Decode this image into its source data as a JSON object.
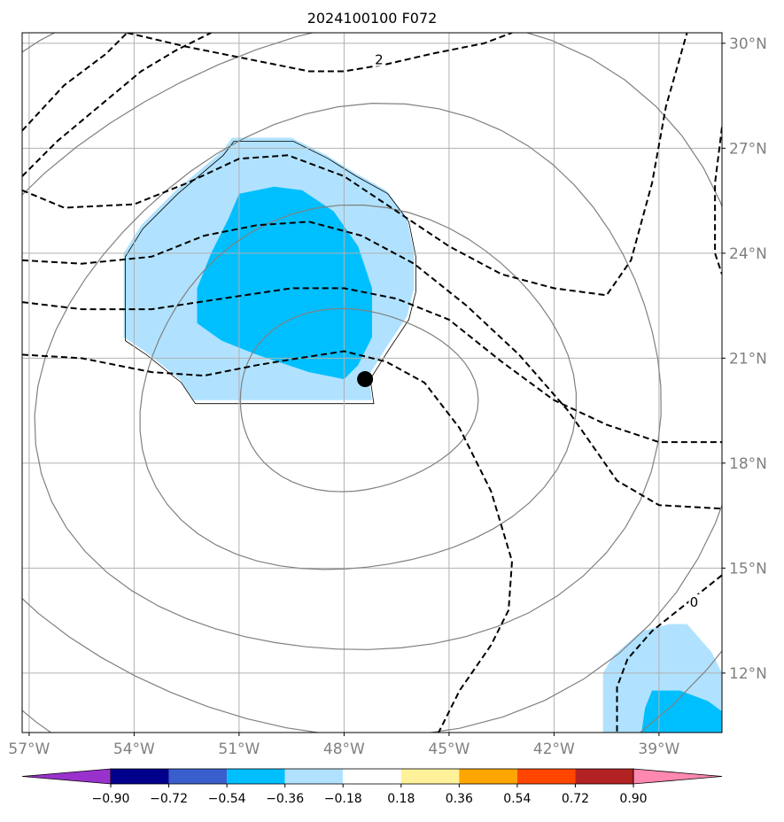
{
  "chart_data": {
    "type": "contour-map",
    "title": "2024100100 F072",
    "projection": "lat-lon",
    "xlim": [
      -57.2,
      -37.2
    ],
    "ylim": [
      10.3,
      30.3
    ],
    "lon_ticks": [
      -57,
      -54,
      -51,
      -48,
      -45,
      -42,
      -39
    ],
    "lon_tick_labels": [
      "57°W",
      "54°W",
      "51°W",
      "48°W",
      "45°W",
      "42°W",
      "39°W"
    ],
    "lat_ticks": [
      12,
      15,
      18,
      21,
      24,
      27,
      30
    ],
    "lat_tick_labels": [
      "12°N",
      "15°N",
      "18°N",
      "21°N",
      "24°N",
      "27°N",
      "30°N"
    ],
    "grid": true,
    "colorbar": {
      "orientation": "horizontal",
      "extend": "both",
      "levels": [
        -0.9,
        -0.72,
        -0.54,
        -0.36,
        -0.18,
        0.18,
        0.36,
        0.54,
        0.72,
        0.9
      ],
      "tick_labels": [
        "−0.90",
        "−0.72",
        "−0.54",
        "−0.36",
        "−0.18",
        "0.18",
        "0.36",
        "0.54",
        "0.72",
        "0.90"
      ],
      "colors": [
        "#9932cc",
        "#00008b",
        "#3a5fcd",
        "#00bfff",
        "#b0e2ff",
        "#ffffff",
        "#fff09a",
        "#ffa500",
        "#ff4500",
        "#b22222",
        "#ff88b0"
      ]
    },
    "center_marker": {
      "lon": -47.4,
      "lat": 20.4,
      "color": "#000000"
    },
    "dashed_contour_labels": [
      {
        "text": "2",
        "lon": -47.0,
        "lat": 29.5
      },
      {
        "text": "0",
        "lon": -38.0,
        "lat": 14.0
      }
    ],
    "shaded_regions": [
      {
        "level": "-0.36 to -0.18",
        "color": "#b0e2ff",
        "polygon": [
          [
            -51.2,
            27.3
          ],
          [
            -49.5,
            27.3
          ],
          [
            -48.5,
            26.8
          ],
          [
            -47.7,
            26.3
          ],
          [
            -46.8,
            25.8
          ],
          [
            -46.2,
            25.0
          ],
          [
            -46.0,
            24.0
          ],
          [
            -46.0,
            23.0
          ],
          [
            -46.2,
            22.2
          ],
          [
            -46.8,
            21.3
          ],
          [
            -47.3,
            20.5
          ],
          [
            -47.2,
            19.8
          ],
          [
            -48.5,
            19.8
          ],
          [
            -50.0,
            19.8
          ],
          [
            -51.5,
            19.8
          ],
          [
            -52.3,
            19.8
          ],
          [
            -52.7,
            20.4
          ],
          [
            -53.7,
            21.2
          ],
          [
            -54.3,
            21.6
          ],
          [
            -54.3,
            23.0
          ],
          [
            -54.3,
            24.0
          ],
          [
            -53.8,
            24.8
          ],
          [
            -52.8,
            25.8
          ],
          [
            -51.5,
            26.9
          ],
          [
            -51.2,
            27.3
          ]
        ]
      },
      {
        "level": "-0.54 to -0.36",
        "color": "#00bfff",
        "polygon": [
          [
            -51.0,
            25.7
          ],
          [
            -50.0,
            25.9
          ],
          [
            -49.2,
            25.8
          ],
          [
            -48.3,
            25.2
          ],
          [
            -47.6,
            24.2
          ],
          [
            -47.2,
            23.0
          ],
          [
            -47.2,
            21.6
          ],
          [
            -47.6,
            20.8
          ],
          [
            -48.0,
            20.4
          ],
          [
            -49.0,
            20.6
          ],
          [
            -50.5,
            21.1
          ],
          [
            -51.5,
            21.5
          ],
          [
            -52.2,
            22.0
          ],
          [
            -52.2,
            23.0
          ],
          [
            -51.8,
            24.0
          ],
          [
            -51.3,
            25.0
          ],
          [
            -51.0,
            25.7
          ]
        ]
      },
      {
        "level": "-0.36 to -0.18",
        "color": "#b0e2ff",
        "polygon": [
          [
            -40.6,
            10.3
          ],
          [
            -40.6,
            12.0
          ],
          [
            -40.3,
            12.5
          ],
          [
            -39.5,
            13.2
          ],
          [
            -38.7,
            13.4
          ],
          [
            -38.2,
            13.4
          ],
          [
            -37.5,
            12.6
          ],
          [
            -37.2,
            12.0
          ],
          [
            -37.2,
            10.3
          ]
        ]
      },
      {
        "level": "-0.54 to -0.36",
        "color": "#00bfff",
        "polygon": [
          [
            -39.5,
            10.3
          ],
          [
            -39.4,
            11.0
          ],
          [
            -39.2,
            11.5
          ],
          [
            -38.4,
            11.5
          ],
          [
            -37.6,
            11.2
          ],
          [
            -37.2,
            10.9
          ],
          [
            -37.2,
            10.3
          ]
        ]
      }
    ]
  }
}
